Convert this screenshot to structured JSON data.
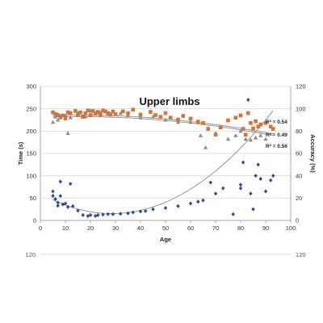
{
  "chart_data": {
    "type": "scatter",
    "title": "Upper limbs",
    "xlabel": "Age",
    "ylabel": "Time (s)",
    "y2label": "Accuracy (%)",
    "xlim": [
      0,
      100
    ],
    "ylim": [
      0,
      300
    ],
    "y2lim": [
      0,
      120
    ],
    "xticks": [
      "0",
      "10",
      "20",
      "30",
      "40",
      "50",
      "60",
      "70",
      "80",
      "90",
      "100"
    ],
    "yticks": [
      "0",
      "50",
      "100",
      "150",
      "200",
      "250",
      "300"
    ],
    "y2ticks": [
      "0",
      "20",
      "40",
      "60",
      "80",
      "100",
      "120"
    ],
    "grid": "horizontal",
    "series": [
      {
        "color": "#d9722a",
        "marker": "square",
        "axis": "left",
        "points": [
          [
            5,
            242
          ],
          [
            6,
            238
          ],
          [
            7,
            236
          ],
          [
            8,
            232
          ],
          [
            9,
            235
          ],
          [
            10,
            228
          ],
          [
            11,
            242
          ],
          [
            12,
            240
          ],
          [
            14,
            245
          ],
          [
            15,
            236
          ],
          [
            16,
            242
          ],
          [
            17,
            232
          ],
          [
            18,
            240
          ],
          [
            19,
            246
          ],
          [
            20,
            236
          ],
          [
            21,
            245
          ],
          [
            22,
            240
          ],
          [
            23,
            243
          ],
          [
            24,
            240
          ],
          [
            25,
            246
          ],
          [
            26,
            244
          ],
          [
            27,
            240
          ],
          [
            28,
            237
          ],
          [
            29,
            244
          ],
          [
            30,
            238
          ],
          [
            33,
            244
          ],
          [
            35,
            240
          ],
          [
            37,
            248
          ],
          [
            40,
            237
          ],
          [
            44,
            243
          ],
          [
            46,
            236
          ],
          [
            48,
            232
          ],
          [
            50,
            240
          ],
          [
            52,
            230
          ],
          [
            55,
            226
          ],
          [
            57,
            234
          ],
          [
            60,
            228
          ],
          [
            63,
            221
          ],
          [
            65,
            218
          ],
          [
            67,
            205
          ],
          [
            70,
            192
          ],
          [
            72,
            208
          ],
          [
            75,
            224
          ],
          [
            78,
            230
          ],
          [
            80,
            235
          ],
          [
            81,
            205
          ],
          [
            82,
            192
          ],
          [
            83,
            240
          ],
          [
            84,
            218
          ],
          [
            85,
            206
          ],
          [
            86,
            222
          ],
          [
            87,
            210
          ],
          [
            88,
            215
          ],
          [
            90,
            218
          ],
          [
            92,
            210
          ],
          [
            93,
            205
          ]
        ]
      },
      {
        "color": "#8a8a8a",
        "marker": "triangle",
        "axis": "left",
        "points": [
          [
            5,
            220
          ],
          [
            6,
            232
          ],
          [
            7,
            225
          ],
          [
            8,
            230
          ],
          [
            10,
            235
          ],
          [
            11,
            195
          ],
          [
            12,
            230
          ],
          [
            15,
            240
          ],
          [
            18,
            232
          ],
          [
            20,
            245
          ],
          [
            24,
            236
          ],
          [
            28,
            238
          ],
          [
            32,
            240
          ],
          [
            35,
            235
          ],
          [
            40,
            230
          ],
          [
            45,
            232
          ],
          [
            50,
            225
          ],
          [
            55,
            220
          ],
          [
            60,
            220
          ],
          [
            64,
            190
          ],
          [
            66,
            163
          ],
          [
            70,
            195
          ],
          [
            75,
            182
          ],
          [
            78,
            190
          ],
          [
            80,
            200
          ],
          [
            82,
            182
          ],
          [
            84,
            180
          ],
          [
            86,
            185
          ],
          [
            88,
            190
          ],
          [
            90,
            182
          ]
        ]
      },
      {
        "color": "#2e46a3",
        "marker": "diamond",
        "axis": "left",
        "points": [
          [
            5,
            65
          ],
          [
            5,
            55
          ],
          [
            6,
            48
          ],
          [
            7,
            40
          ],
          [
            7,
            33
          ],
          [
            8,
            87
          ],
          [
            8,
            55
          ],
          [
            9,
            36
          ],
          [
            10,
            38
          ],
          [
            11,
            30
          ],
          [
            12,
            82
          ],
          [
            13,
            32
          ],
          [
            15,
            22
          ],
          [
            17,
            12
          ],
          [
            19,
            10
          ],
          [
            20,
            12
          ],
          [
            22,
            10
          ],
          [
            23,
            12
          ],
          [
            25,
            13
          ],
          [
            27,
            14
          ],
          [
            29,
            14
          ],
          [
            32,
            15
          ],
          [
            35,
            16
          ],
          [
            37,
            18
          ],
          [
            40,
            20
          ],
          [
            42,
            21
          ],
          [
            45,
            25
          ],
          [
            50,
            28
          ],
          [
            55,
            32
          ],
          [
            60,
            38
          ],
          [
            63,
            42
          ],
          [
            65,
            45
          ],
          [
            68,
            85
          ],
          [
            70,
            60
          ],
          [
            73,
            72
          ],
          [
            77,
            14
          ],
          [
            80,
            80
          ],
          [
            80,
            72
          ],
          [
            81,
            130
          ],
          [
            83,
            270
          ],
          [
            84,
            60
          ],
          [
            85,
            25
          ],
          [
            86,
            100
          ],
          [
            87,
            125
          ],
          [
            88,
            93
          ],
          [
            90,
            65
          ],
          [
            92,
            90
          ],
          [
            93,
            100
          ]
        ]
      }
    ],
    "trendlines": [
      {
        "color": "#8a8a8a",
        "poly": [
          235,
          0.18,
          -0.00675
        ]
      },
      {
        "color": "#8a8a8a",
        "poly": [
          231,
          0.2,
          -0.0069
        ]
      },
      {
        "color": "#8a8a8a",
        "poly": [
          60.5,
          -3.167,
          0.0555
        ]
      }
    ],
    "annotations": [
      {
        "text": "R² = 0.54",
        "x": 90,
        "y": 217
      },
      {
        "text": "R² = 0.49",
        "x": 90,
        "y": 188
      },
      {
        "text": "R² = 0.56",
        "x": 90,
        "y": 163
      }
    ],
    "next_panel": {
      "left_tick": "120",
      "right_tick": "120"
    }
  }
}
